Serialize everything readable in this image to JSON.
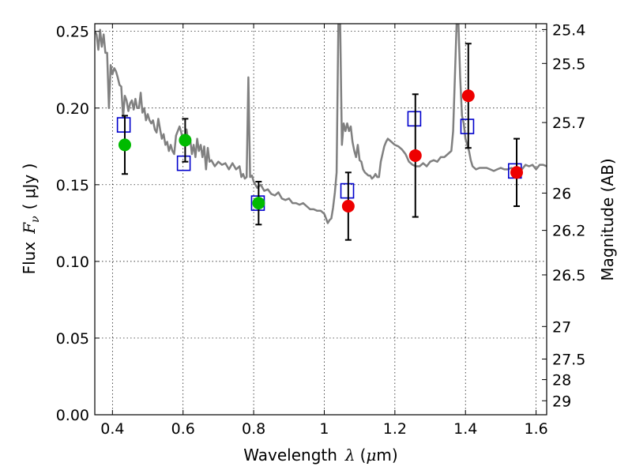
{
  "chart_data": {
    "type": "scatter",
    "title": "",
    "xlabel": {
      "prefix": "Wavelength",
      "symbol": "λ",
      "unit_open": "(",
      "unit_mu": "μ",
      "unit_rest": "m)"
    },
    "ylabel": {
      "prefix": "Flux",
      "symbol": "F",
      "subscript": "ν",
      "unit": "( μJy )"
    },
    "y2label": "Magnitude (AB)",
    "xlim": [
      0.35,
      1.63
    ],
    "ylim": [
      0.0,
      0.255
    ],
    "grid": true,
    "x_ticks": [
      {
        "value": 0.4,
        "label": "0.4"
      },
      {
        "value": 0.6,
        "label": "0.6"
      },
      {
        "value": 0.8,
        "label": "0.8"
      },
      {
        "value": 1.0,
        "label": "1"
      },
      {
        "value": 1.2,
        "label": "1.2"
      },
      {
        "value": 1.4,
        "label": "1.4"
      },
      {
        "value": 1.6,
        "label": "1.6"
      }
    ],
    "y_ticks": [
      {
        "value": 0.0,
        "label": "0.00"
      },
      {
        "value": 0.05,
        "label": "0.05"
      },
      {
        "value": 0.1,
        "label": "0.10"
      },
      {
        "value": 0.15,
        "label": "0.15"
      },
      {
        "value": 0.2,
        "label": "0.20"
      },
      {
        "value": 0.25,
        "label": "0.25"
      }
    ],
    "y2_ticks": [
      {
        "label": "25.4",
        "mag": 25.4
      },
      {
        "label": "25.5",
        "mag": 25.5
      },
      {
        "label": "25.7",
        "mag": 25.7
      },
      {
        "label": "26",
        "mag": 26.0
      },
      {
        "label": "26.2",
        "mag": 26.2
      },
      {
        "label": "26.5",
        "mag": 26.5
      },
      {
        "label": "27",
        "mag": 27.0
      },
      {
        "label": "27.5",
        "mag": 27.5
      },
      {
        "label": "28",
        "mag": 28.0
      },
      {
        "label": "29",
        "mag": 29.0
      }
    ],
    "series": [
      {
        "kind": "line",
        "color": "#808080",
        "points": [
          [
            0.35,
            0.25
          ],
          [
            0.355,
            0.248
          ],
          [
            0.36,
            0.238
          ],
          [
            0.365,
            0.251
          ],
          [
            0.37,
            0.24
          ],
          [
            0.375,
            0.248
          ],
          [
            0.38,
            0.236
          ],
          [
            0.385,
            0.236
          ],
          [
            0.39,
            0.2
          ],
          [
            0.395,
            0.228
          ],
          [
            0.4,
            0.222
          ],
          [
            0.405,
            0.226
          ],
          [
            0.41,
            0.224
          ],
          [
            0.415,
            0.22
          ],
          [
            0.42,
            0.215
          ],
          [
            0.425,
            0.214
          ],
          [
            0.43,
            0.194
          ],
          [
            0.435,
            0.208
          ],
          [
            0.44,
            0.205
          ],
          [
            0.445,
            0.198
          ],
          [
            0.45,
            0.203
          ],
          [
            0.455,
            0.205
          ],
          [
            0.46,
            0.199
          ],
          [
            0.465,
            0.206
          ],
          [
            0.47,
            0.2
          ],
          [
            0.475,
            0.2
          ],
          [
            0.48,
            0.21
          ],
          [
            0.485,
            0.197
          ],
          [
            0.49,
            0.2
          ],
          [
            0.495,
            0.192
          ],
          [
            0.5,
            0.196
          ],
          [
            0.505,
            0.192
          ],
          [
            0.51,
            0.19
          ],
          [
            0.515,
            0.192
          ],
          [
            0.52,
            0.186
          ],
          [
            0.525,
            0.184
          ],
          [
            0.53,
            0.193
          ],
          [
            0.535,
            0.186
          ],
          [
            0.54,
            0.18
          ],
          [
            0.545,
            0.183
          ],
          [
            0.55,
            0.176
          ],
          [
            0.555,
            0.178
          ],
          [
            0.56,
            0.172
          ],
          [
            0.565,
            0.176
          ],
          [
            0.57,
            0.172
          ],
          [
            0.575,
            0.17
          ],
          [
            0.58,
            0.182
          ],
          [
            0.585,
            0.185
          ],
          [
            0.59,
            0.188
          ],
          [
            0.595,
            0.184
          ],
          [
            0.6,
            0.178
          ],
          [
            0.605,
            0.176
          ],
          [
            0.61,
            0.186
          ],
          [
            0.615,
            0.177
          ],
          [
            0.62,
            0.18
          ],
          [
            0.625,
            0.17
          ],
          [
            0.63,
            0.176
          ],
          [
            0.635,
            0.168
          ],
          [
            0.64,
            0.18
          ],
          [
            0.645,
            0.172
          ],
          [
            0.65,
            0.176
          ],
          [
            0.655,
            0.168
          ],
          [
            0.66,
            0.175
          ],
          [
            0.665,
            0.16
          ],
          [
            0.67,
            0.174
          ],
          [
            0.675,
            0.165
          ],
          [
            0.68,
            0.166
          ],
          [
            0.69,
            0.162
          ],
          [
            0.7,
            0.165
          ],
          [
            0.71,
            0.163
          ],
          [
            0.72,
            0.164
          ],
          [
            0.73,
            0.16
          ],
          [
            0.74,
            0.164
          ],
          [
            0.75,
            0.16
          ],
          [
            0.76,
            0.162
          ],
          [
            0.765,
            0.155
          ],
          [
            0.77,
            0.157
          ],
          [
            0.775,
            0.154
          ],
          [
            0.78,
            0.155
          ],
          [
            0.785,
            0.22
          ],
          [
            0.79,
            0.155
          ],
          [
            0.795,
            0.156
          ],
          [
            0.8,
            0.152
          ],
          [
            0.81,
            0.148
          ],
          [
            0.82,
            0.15
          ],
          [
            0.83,
            0.146
          ],
          [
            0.84,
            0.147
          ],
          [
            0.85,
            0.144
          ],
          [
            0.86,
            0.143
          ],
          [
            0.87,
            0.145
          ],
          [
            0.88,
            0.141
          ],
          [
            0.89,
            0.14
          ],
          [
            0.9,
            0.141
          ],
          [
            0.91,
            0.138
          ],
          [
            0.92,
            0.138
          ],
          [
            0.93,
            0.137
          ],
          [
            0.94,
            0.138
          ],
          [
            0.95,
            0.136
          ],
          [
            0.96,
            0.134
          ],
          [
            0.97,
            0.134
          ],
          [
            0.98,
            0.133
          ],
          [
            0.99,
            0.133
          ],
          [
            1.0,
            0.131
          ],
          [
            1.005,
            0.128
          ],
          [
            1.01,
            0.125
          ],
          [
            1.015,
            0.127
          ],
          [
            1.02,
            0.128
          ],
          [
            1.025,
            0.135
          ],
          [
            1.03,
            0.145
          ],
          [
            1.035,
            0.158
          ],
          [
            1.04,
            0.255
          ],
          [
            1.045,
            0.255
          ],
          [
            1.05,
            0.176
          ],
          [
            1.055,
            0.19
          ],
          [
            1.06,
            0.185
          ],
          [
            1.065,
            0.19
          ],
          [
            1.07,
            0.185
          ],
          [
            1.075,
            0.188
          ],
          [
            1.08,
            0.178
          ],
          [
            1.085,
            0.172
          ],
          [
            1.09,
            0.168
          ],
          [
            1.095,
            0.176
          ],
          [
            1.1,
            0.166
          ],
          [
            1.105,
            0.165
          ],
          [
            1.11,
            0.16
          ],
          [
            1.115,
            0.158
          ],
          [
            1.12,
            0.157
          ],
          [
            1.125,
            0.156
          ],
          [
            1.13,
            0.156
          ],
          [
            1.135,
            0.154
          ],
          [
            1.14,
            0.155
          ],
          [
            1.145,
            0.157
          ],
          [
            1.15,
            0.155
          ],
          [
            1.155,
            0.155
          ],
          [
            1.16,
            0.165
          ],
          [
            1.165,
            0.17
          ],
          [
            1.17,
            0.175
          ],
          [
            1.175,
            0.178
          ],
          [
            1.18,
            0.18
          ],
          [
            1.19,
            0.178
          ],
          [
            1.2,
            0.176
          ],
          [
            1.21,
            0.175
          ],
          [
            1.22,
            0.173
          ],
          [
            1.23,
            0.17
          ],
          [
            1.24,
            0.165
          ],
          [
            1.25,
            0.163
          ],
          [
            1.26,
            0.162
          ],
          [
            1.27,
            0.162
          ],
          [
            1.28,
            0.164
          ],
          [
            1.29,
            0.162
          ],
          [
            1.3,
            0.165
          ],
          [
            1.31,
            0.166
          ],
          [
            1.32,
            0.165
          ],
          [
            1.33,
            0.168
          ],
          [
            1.34,
            0.168
          ],
          [
            1.35,
            0.17
          ],
          [
            1.36,
            0.172
          ],
          [
            1.365,
            0.185
          ],
          [
            1.37,
            0.22
          ],
          [
            1.375,
            0.255
          ],
          [
            1.38,
            0.255
          ],
          [
            1.385,
            0.22
          ],
          [
            1.39,
            0.195
          ],
          [
            1.395,
            0.19
          ],
          [
            1.4,
            0.18
          ],
          [
            1.405,
            0.176
          ],
          [
            1.41,
            0.172
          ],
          [
            1.415,
            0.166
          ],
          [
            1.42,
            0.162
          ],
          [
            1.43,
            0.16
          ],
          [
            1.44,
            0.161
          ],
          [
            1.45,
            0.161
          ],
          [
            1.46,
            0.161
          ],
          [
            1.47,
            0.16
          ],
          [
            1.48,
            0.159
          ],
          [
            1.49,
            0.16
          ],
          [
            1.5,
            0.161
          ],
          [
            1.51,
            0.16
          ],
          [
            1.52,
            0.16
          ],
          [
            1.53,
            0.161
          ],
          [
            1.54,
            0.16
          ],
          [
            1.55,
            0.161
          ],
          [
            1.56,
            0.16
          ],
          [
            1.57,
            0.163
          ],
          [
            1.58,
            0.162
          ],
          [
            1.59,
            0.163
          ],
          [
            1.6,
            0.16
          ],
          [
            1.61,
            0.163
          ],
          [
            1.62,
            0.163
          ],
          [
            1.63,
            0.162
          ]
        ]
      },
      {
        "kind": "model-squares",
        "color": "#0000cc",
        "points": [
          {
            "x": 0.432,
            "y": 0.189
          },
          {
            "x": 0.602,
            "y": 0.164
          },
          {
            "x": 0.812,
            "y": 0.138
          },
          {
            "x": 1.065,
            "y": 0.146
          },
          {
            "x": 1.255,
            "y": 0.193
          },
          {
            "x": 1.405,
            "y": 0.188
          },
          {
            "x": 1.54,
            "y": 0.159
          }
        ]
      },
      {
        "kind": "observed-green",
        "color": "#00bb00",
        "points": [
          {
            "x": 0.435,
            "y": 0.176,
            "err": 0.019
          },
          {
            "x": 0.606,
            "y": 0.179,
            "err": 0.014
          },
          {
            "x": 0.814,
            "y": 0.138,
            "err": 0.014
          }
        ]
      },
      {
        "kind": "observed-red",
        "color": "#ee0000",
        "points": [
          {
            "x": 1.068,
            "y": 0.136,
            "err": 0.022
          },
          {
            "x": 1.258,
            "y": 0.169,
            "err": 0.04
          },
          {
            "x": 1.408,
            "y": 0.208,
            "err": 0.034
          },
          {
            "x": 1.545,
            "y": 0.158,
            "err": 0.022
          }
        ]
      }
    ]
  }
}
